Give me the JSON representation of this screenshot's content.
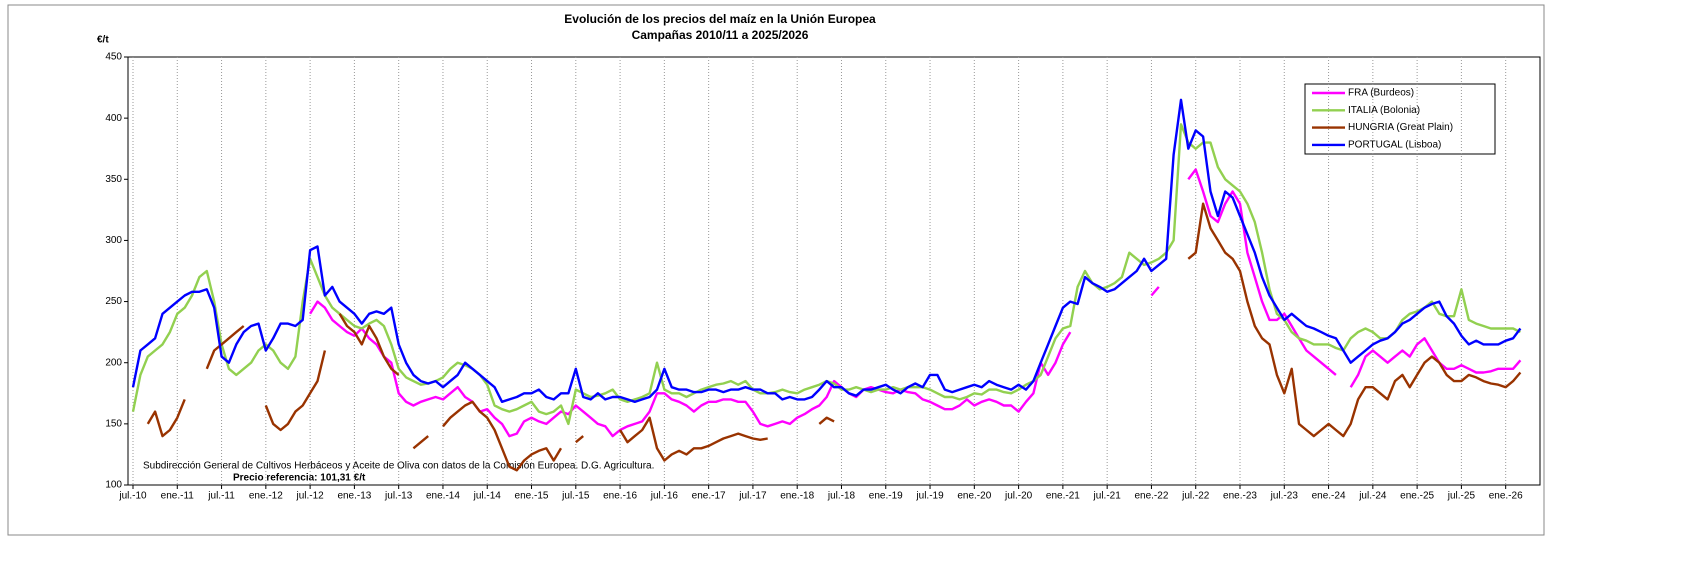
{
  "chart_data": {
    "type": "line",
    "title": "Evolución de los precios del maíz en la Unión Europea",
    "subtitle": "Campañas 2010/11 a 2025/2026",
    "y_label": "€/t",
    "source": "Subdirección General de Cultivos Herbáceos y Aceite de Oliva con datos de la Comisión Europea. D.G. Agricultura.",
    "reference": "Precio referencia: 101,31 €/t",
    "ylim": [
      100,
      450
    ],
    "yticks": [
      100,
      150,
      200,
      250,
      300,
      350,
      400,
      450
    ],
    "xgrid": true,
    "legend": "top-right",
    "categories": [
      "jul.-10",
      null,
      null,
      null,
      null,
      null,
      "ene.-11",
      null,
      null,
      null,
      null,
      null,
      "jul.-11",
      null,
      null,
      null,
      null,
      null,
      "ene.-12",
      null,
      null,
      null,
      null,
      null,
      "jul.-12",
      null,
      null,
      null,
      null,
      null,
      "ene.-13",
      null,
      null,
      null,
      null,
      null,
      "jul.-13",
      null,
      null,
      null,
      null,
      null,
      "ene.-14",
      null,
      null,
      null,
      null,
      null,
      "jul.-14",
      null,
      null,
      null,
      null,
      null,
      "ene.-15",
      null,
      null,
      null,
      null,
      null,
      "jul.-15",
      null,
      null,
      null,
      null,
      null,
      "ene.-16",
      null,
      null,
      null,
      null,
      null,
      "jul.-16",
      null,
      null,
      null,
      null,
      null,
      "ene.-17",
      null,
      null,
      null,
      null,
      null,
      "jul.-17",
      null,
      null,
      null,
      null,
      null,
      "ene.-18",
      null,
      null,
      null,
      null,
      null,
      "jul.-18",
      null,
      null,
      null,
      null,
      null,
      "ene.-19",
      null,
      null,
      null,
      null,
      null,
      "jul.-19",
      null,
      null,
      null,
      null,
      null,
      "ene.-20",
      null,
      null,
      null,
      null,
      null,
      "jul.-20",
      null,
      null,
      null,
      null,
      null,
      "ene.-21",
      null,
      null,
      null,
      null,
      null,
      "jul.-21",
      null,
      null,
      null,
      null,
      null,
      "ene.-22",
      null,
      null,
      null,
      null,
      null,
      "jul.-22",
      null,
      null,
      null,
      null,
      null,
      "ene.-23",
      null,
      null,
      null,
      null,
      null,
      "jul.-23",
      null,
      null,
      null,
      null,
      null,
      "ene.-24",
      null,
      null,
      null,
      null,
      null,
      "jul.-24",
      null,
      null,
      null,
      null,
      null,
      "ene.-25",
      null,
      null,
      null,
      null,
      null,
      "jul.-25",
      null,
      null,
      null,
      null,
      null,
      "ene.-26",
      null,
      null
    ],
    "series": [
      {
        "name": "FRA (Burdeos)",
        "color": "#ff00ff",
        "values": [
          165,
          null,
          null,
          null,
          null,
          null,
          null,
          null,
          null,
          null,
          null,
          null,
          null,
          null,
          null,
          null,
          null,
          null,
          null,
          null,
          null,
          null,
          null,
          null,
          240,
          250,
          245,
          235,
          230,
          225,
          222,
          228,
          220,
          215,
          205,
          200,
          175,
          168,
          165,
          168,
          170,
          172,
          170,
          175,
          180,
          172,
          168,
          160,
          162,
          155,
          150,
          140,
          142,
          152,
          155,
          152,
          150,
          155,
          160,
          158,
          165,
          160,
          155,
          150,
          148,
          140,
          145,
          148,
          150,
          152,
          160,
          175,
          175,
          170,
          168,
          165,
          160,
          165,
          168,
          168,
          170,
          170,
          168,
          168,
          160,
          150,
          148,
          150,
          152,
          150,
          155,
          158,
          162,
          165,
          172,
          185,
          180,
          175,
          172,
          178,
          180,
          178,
          176,
          175,
          178,
          176,
          175,
          170,
          168,
          165,
          162,
          162,
          165,
          170,
          165,
          168,
          170,
          168,
          165,
          165,
          160,
          168,
          175,
          200,
          190,
          200,
          215,
          225,
          null,
          null,
          null,
          null,
          null,
          null,
          null,
          null,
          null,
          null,
          255,
          262,
          null,
          null,
          null,
          350,
          358,
          340,
          320,
          315,
          330,
          340,
          330,
          290,
          270,
          250,
          235,
          235,
          240,
          230,
          220,
          210,
          205,
          200,
          195,
          190,
          null,
          180,
          190,
          205,
          210,
          205,
          200,
          205,
          210,
          205,
          215,
          220,
          210,
          200,
          195,
          195,
          198,
          195,
          192,
          192,
          193,
          195,
          195,
          195,
          202
        ]
      },
      {
        "name": "ITALIA (Bolonia)",
        "color": "#92d050",
        "values": [
          160,
          190,
          205,
          210,
          215,
          225,
          240,
          245,
          255,
          270,
          275,
          250,
          215,
          195,
          190,
          195,
          200,
          210,
          215,
          210,
          200,
          195,
          205,
          250,
          285,
          270,
          255,
          245,
          240,
          235,
          230,
          228,
          232,
          235,
          230,
          215,
          195,
          188,
          185,
          182,
          183,
          185,
          188,
          195,
          200,
          198,
          195,
          190,
          182,
          165,
          162,
          160,
          162,
          165,
          168,
          160,
          158,
          160,
          165,
          150,
          178,
          175,
          172,
          173,
          175,
          178,
          170,
          168,
          170,
          172,
          175,
          200,
          178,
          175,
          175,
          172,
          175,
          178,
          180,
          182,
          183,
          185,
          182,
          185,
          178,
          175,
          175,
          176,
          178,
          176,
          175,
          178,
          180,
          182,
          185,
          183,
          178,
          178,
          180,
          178,
          176,
          178,
          178,
          180,
          178,
          180,
          180,
          180,
          178,
          175,
          172,
          172,
          170,
          172,
          175,
          174,
          178,
          178,
          176,
          175,
          178,
          182,
          185,
          190,
          205,
          220,
          228,
          230,
          262,
          275,
          265,
          260,
          262,
          265,
          270,
          290,
          285,
          280,
          282,
          285,
          290,
          300,
          395,
          380,
          375,
          380,
          380,
          360,
          350,
          345,
          340,
          330,
          315,
          290,
          260,
          240,
          235,
          225,
          220,
          218,
          215,
          215,
          215,
          212,
          210,
          220,
          225,
          228,
          225,
          220,
          220,
          225,
          235,
          240,
          242,
          245,
          250,
          240,
          238,
          238,
          260,
          235,
          232,
          230,
          228,
          228,
          228,
          228,
          225
        ]
      },
      {
        "name": "HUNGRIA (Great Plain)",
        "color": "#993300",
        "values": [
          null,
          null,
          150,
          160,
          140,
          145,
          155,
          170,
          null,
          null,
          195,
          210,
          215,
          220,
          225,
          230,
          null,
          null,
          165,
          150,
          145,
          150,
          160,
          165,
          175,
          185,
          210,
          null,
          240,
          230,
          225,
          215,
          230,
          220,
          205,
          195,
          190,
          null,
          130,
          135,
          140,
          null,
          148,
          155,
          160,
          165,
          168,
          160,
          155,
          145,
          130,
          115,
          112,
          120,
          125,
          128,
          130,
          120,
          130,
          null,
          135,
          140,
          null,
          null,
          null,
          null,
          145,
          135,
          140,
          145,
          155,
          130,
          120,
          125,
          128,
          125,
          130,
          130,
          132,
          135,
          138,
          140,
          142,
          140,
          138,
          137,
          138,
          null,
          null,
          null,
          null,
          null,
          null,
          150,
          155,
          152,
          null,
          null,
          null,
          null,
          null,
          null,
          null,
          null,
          null,
          null,
          null,
          null,
          null,
          null,
          null,
          null,
          null,
          null,
          null,
          null,
          null,
          null,
          null,
          null,
          null,
          null,
          null,
          null,
          null,
          null,
          null,
          null,
          null,
          null,
          null,
          null,
          null,
          null,
          null,
          null,
          null,
          null,
          null,
          null,
          null,
          null,
          null,
          285,
          290,
          330,
          310,
          300,
          290,
          285,
          275,
          250,
          230,
          220,
          215,
          190,
          175,
          195,
          150,
          145,
          140,
          145,
          150,
          145,
          140,
          150,
          170,
          180,
          180,
          175,
          170,
          185,
          190,
          180,
          190,
          200,
          205,
          200,
          190,
          185,
          185,
          190,
          188,
          185,
          183,
          182,
          180,
          185,
          192
        ]
      },
      {
        "name": "PORTUGAL (Lisboa)",
        "color": "#0000ff",
        "values": [
          180,
          210,
          215,
          220,
          240,
          245,
          250,
          255,
          258,
          258,
          260,
          245,
          205,
          200,
          215,
          225,
          230,
          232,
          210,
          220,
          232,
          232,
          230,
          235,
          292,
          295,
          255,
          262,
          250,
          245,
          240,
          232,
          240,
          242,
          240,
          245,
          215,
          200,
          190,
          185,
          183,
          185,
          180,
          185,
          190,
          200,
          195,
          190,
          185,
          180,
          168,
          170,
          172,
          175,
          175,
          178,
          172,
          170,
          175,
          175,
          195,
          172,
          170,
          175,
          170,
          172,
          172,
          170,
          168,
          170,
          172,
          178,
          195,
          180,
          178,
          178,
          176,
          176,
          178,
          178,
          176,
          178,
          178,
          180,
          178,
          178,
          175,
          175,
          170,
          172,
          170,
          170,
          172,
          178,
          185,
          180,
          180,
          175,
          173,
          178,
          178,
          180,
          182,
          178,
          175,
          180,
          183,
          180,
          190,
          190,
          178,
          176,
          178,
          180,
          182,
          180,
          185,
          182,
          180,
          178,
          182,
          178,
          185,
          200,
          215,
          230,
          245,
          250,
          248,
          270,
          265,
          262,
          258,
          260,
          265,
          270,
          275,
          285,
          275,
          280,
          285,
          370,
          415,
          375,
          390,
          385,
          340,
          320,
          340,
          335,
          320,
          305,
          290,
          270,
          255,
          245,
          235,
          240,
          235,
          230,
          228,
          225,
          222,
          220,
          210,
          200,
          205,
          210,
          215,
          218,
          220,
          225,
          232,
          235,
          240,
          245,
          248,
          250,
          238,
          232,
          222,
          215,
          218,
          215,
          215,
          215,
          218,
          220,
          228
        ]
      }
    ]
  }
}
